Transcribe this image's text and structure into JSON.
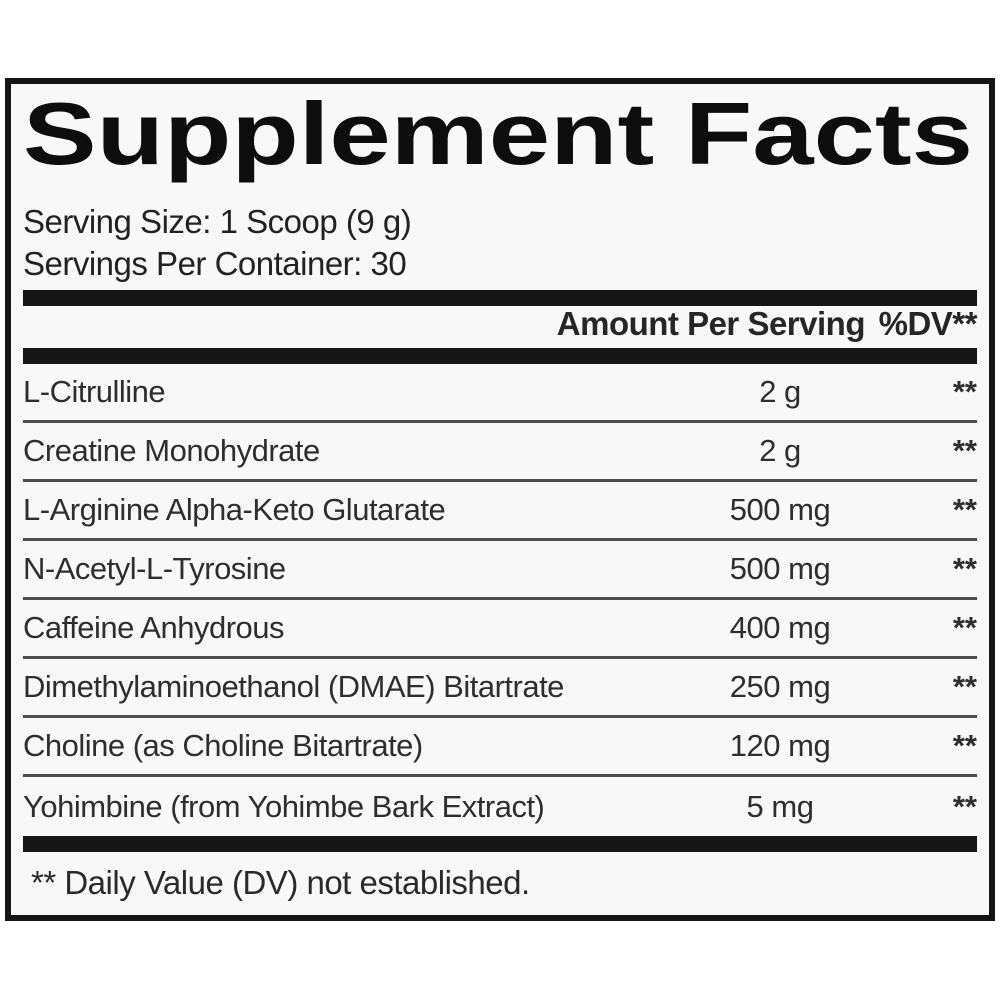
{
  "label": {
    "title": "Supplement Facts",
    "serving_size": "Serving Size: 1 Scoop (9 g)",
    "servings_per_container": "Servings Per Container: 30",
    "header": {
      "amount": "Amount Per Serving",
      "dv": "%DV**"
    },
    "rows": [
      {
        "name": "L-Citrulline",
        "amount": "2 g",
        "dv": "**"
      },
      {
        "name": "Creatine Monohydrate",
        "amount": "2 g",
        "dv": "**"
      },
      {
        "name": "L-Arginine Alpha-Keto Glutarate",
        "amount": "500 mg",
        "dv": "**"
      },
      {
        "name": "N-Acetyl-L-Tyrosine",
        "amount": "500 mg",
        "dv": "**"
      },
      {
        "name": "Caffeine Anhydrous",
        "amount": "400 mg",
        "dv": "**"
      },
      {
        "name": "Dimethylaminoethanol (DMAE) Bitartrate",
        "amount": "250 mg",
        "dv": "**"
      },
      {
        "name": "Choline (as Choline Bitartrate)",
        "amount": "120 mg",
        "dv": "**"
      },
      {
        "name": "Yohimbine (from Yohimbe Bark Extract)",
        "amount": "5 mg",
        "dv": "**"
      }
    ],
    "footnote": "** Daily Value (DV) not established.",
    "colors": {
      "border": "#141414",
      "bar": "#151515",
      "text": "#2e2e2e",
      "background": "#f8f8f8",
      "page_background": "#ffffff"
    }
  }
}
